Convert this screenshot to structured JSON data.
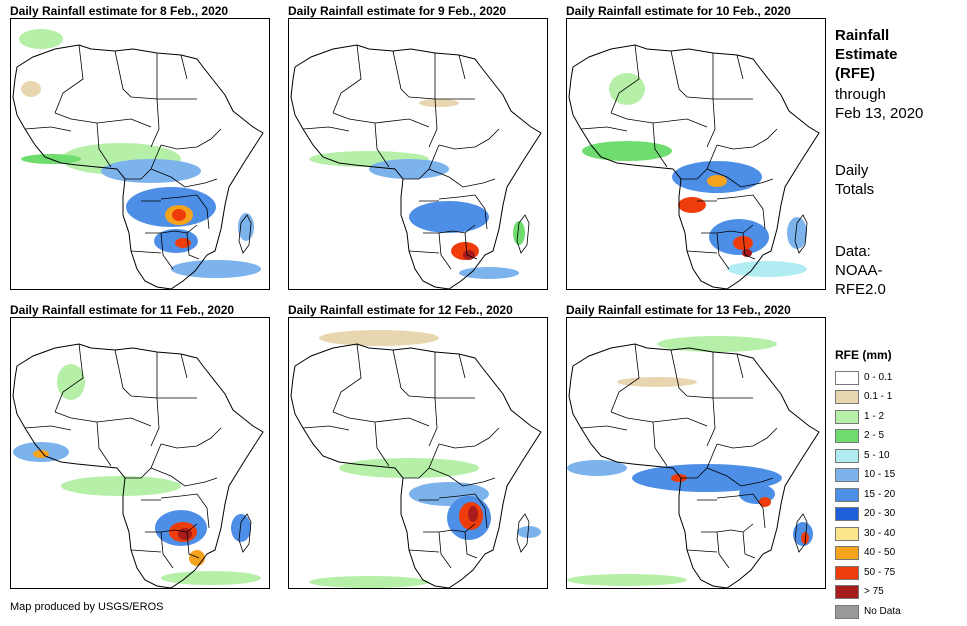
{
  "panels": [
    {
      "title": "Daily Rainfall estimate for 8 Feb., 2020",
      "day": 0
    },
    {
      "title": "Daily Rainfall estimate for 9 Feb., 2020",
      "day": 1
    },
    {
      "title": "Daily Rainfall estimate for 10 Feb., 2020",
      "day": 2
    },
    {
      "title": "Daily Rainfall estimate for 11 Feb., 2020",
      "day": 3
    },
    {
      "title": "Daily Rainfall estimate for 12 Feb., 2020",
      "day": 4
    },
    {
      "title": "Daily Rainfall estimate for 13 Feb., 2020",
      "day": 5
    }
  ],
  "side": {
    "title_line1": "Rainfall",
    "title_line2": "Estimate",
    "title_line3": "(RFE)",
    "through": "through",
    "date": "Feb 13, 2020",
    "daily1": "Daily",
    "daily2": "Totals",
    "data1": "Data:",
    "data2": "NOAA-",
    "data3": "RFE2.0"
  },
  "legend": {
    "title": "RFE (mm)",
    "items": [
      {
        "label": "0 - 0.1",
        "color": "#ffffff"
      },
      {
        "label": "0.1 - 1",
        "color": "#e8d6b0"
      },
      {
        "label": "1 - 2",
        "color": "#b6f0a8"
      },
      {
        "label": "2 - 5",
        "color": "#6fdc6f"
      },
      {
        "label": "5 - 10",
        "color": "#b0ecf2"
      },
      {
        "label": "10 - 15",
        "color": "#7db3ec"
      },
      {
        "label": "15 - 20",
        "color": "#4d8fe6"
      },
      {
        "label": "20 - 30",
        "color": "#1f5fd8"
      },
      {
        "label": "30 - 40",
        "color": "#fbe48a"
      },
      {
        "label": "40 - 50",
        "color": "#f5a21d"
      },
      {
        "label": "50 - 75",
        "color": "#ee3d0a"
      },
      {
        "label": "> 75",
        "color": "#a81c1c"
      },
      {
        "label": "No Data",
        "color": "#999999"
      }
    ]
  },
  "credit": "Map produced by USGS/EROS"
}
